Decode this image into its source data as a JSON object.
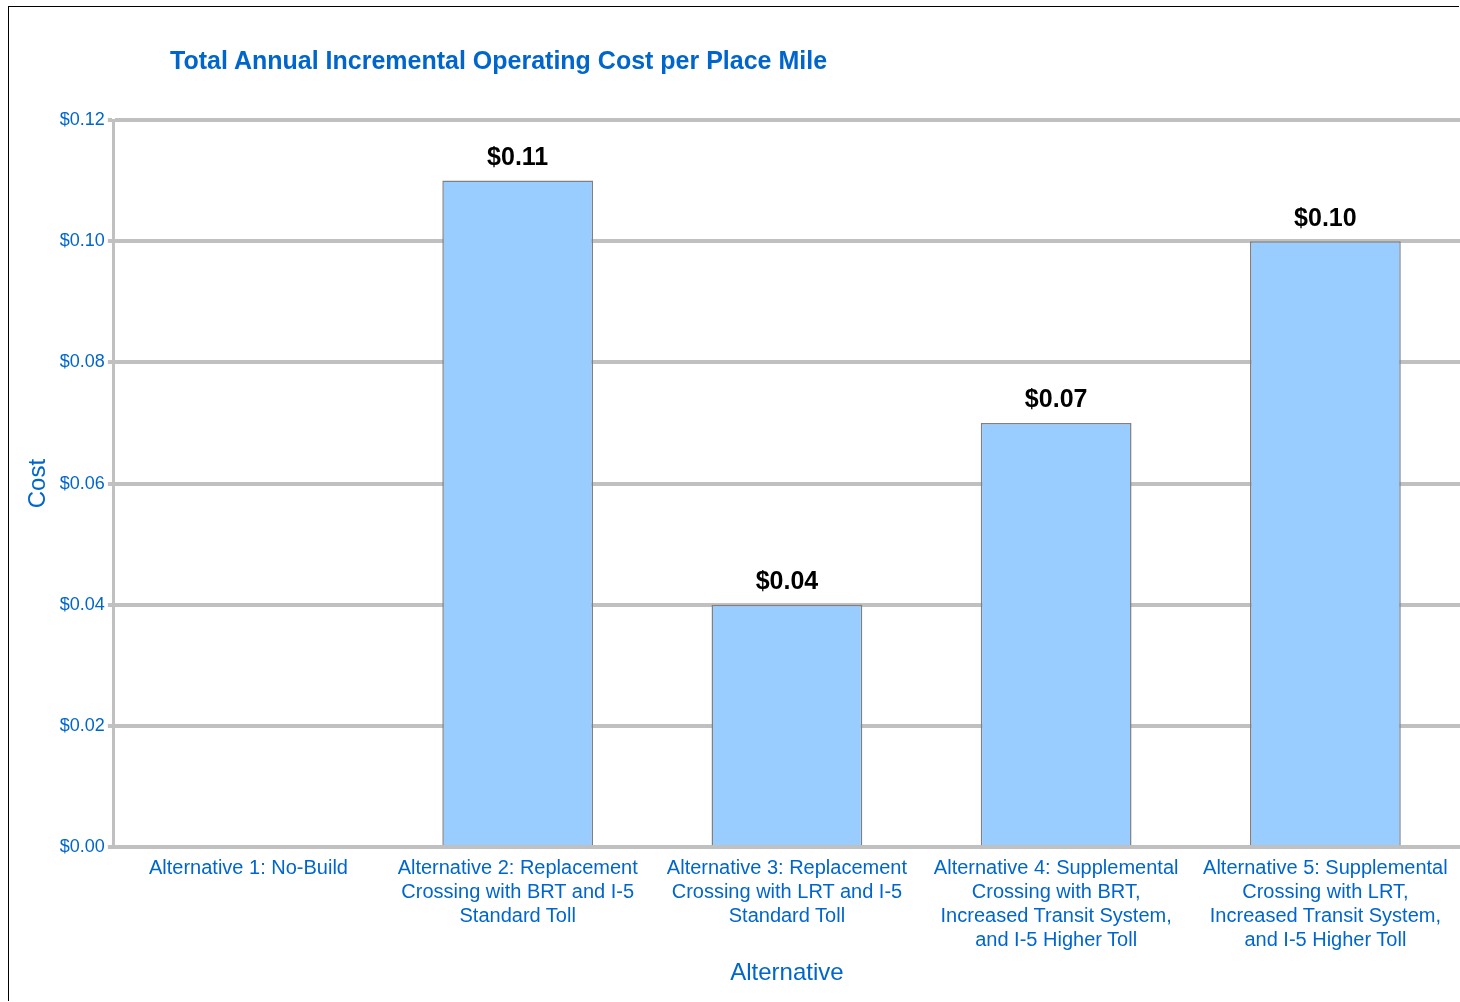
{
  "chart_data": {
    "type": "bar",
    "title": "Total Annual Incremental Operating Cost per Place Mile",
    "xlabel": "Alternative",
    "ylabel": "Cost",
    "categories": [
      "Alternative 1: No-Build",
      "Alternative 2: Replacement Crossing with BRT and I-5 Standard Toll",
      "Alternative 3: Replacement Crossing with LRT and I-5 Standard Toll",
      "Alternative 4: Supplemental Crossing with BRT, Increased Transit System, and I-5 Higher Toll",
      "Alternative 5: Supplemental Crossing with LRT, Increased Transit System, and I-5 Higher Toll"
    ],
    "values": [
      0,
      0.11,
      0.04,
      0.07,
      0.1
    ],
    "value_labels": [
      null,
      "$0.11",
      "$0.04",
      "$0.07",
      "$0.10"
    ],
    "color": "#99ccff",
    "ylim": [
      0,
      0.12
    ],
    "yticks": [
      {
        "value": 0,
        "label": "$0.00"
      },
      {
        "value": 0.02,
        "label": "$0.02"
      },
      {
        "value": 0.04,
        "label": "$0.04"
      },
      {
        "value": 0.06,
        "label": "$0.06"
      },
      {
        "value": 0.08,
        "label": "$0.08"
      },
      {
        "value": 0.1,
        "label": "$0.10"
      },
      {
        "value": 0.12,
        "label": "$0.12"
      }
    ],
    "grid": "y",
    "legend": false
  }
}
